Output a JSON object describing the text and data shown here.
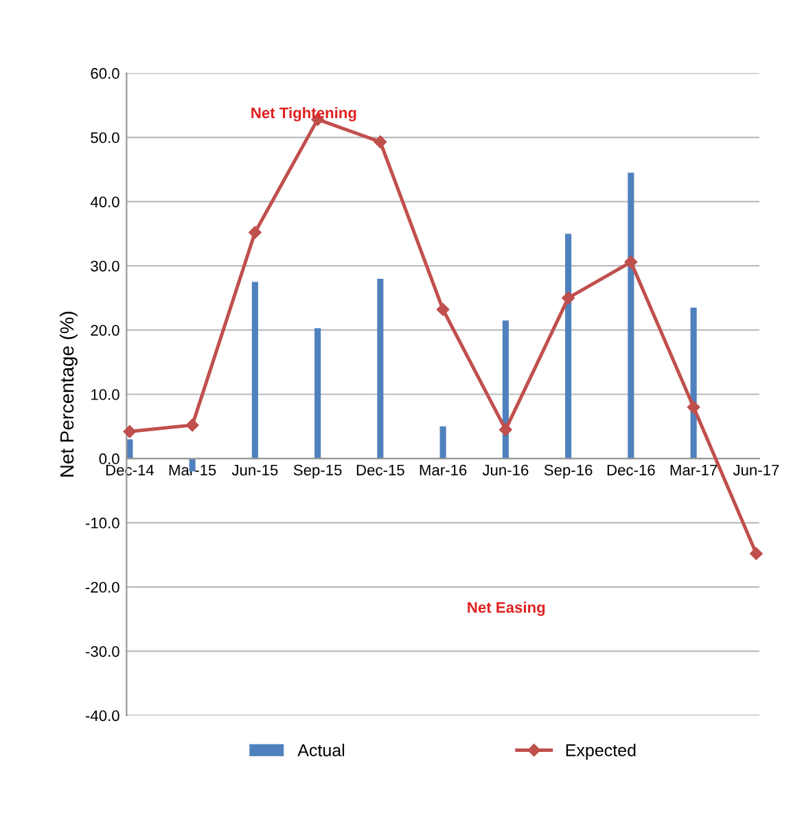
{
  "chart_data": {
    "type": "bar",
    "ylabel": "Net Percentage (%)",
    "categories": [
      "Dec-14",
      "Mar-15",
      "Jun-15",
      "Sep-15",
      "Dec-15",
      "Mar-16",
      "Jun-16",
      "Sep-16",
      "Dec-16",
      "Mar-17",
      "Jun-17"
    ],
    "series": [
      {
        "name": "Actual",
        "color": "#4f81bd",
        "values": [
          3,
          -2,
          27.5,
          20.3,
          28,
          5,
          21.5,
          35,
          44.5,
          23.5,
          null
        ]
      },
      {
        "name": "Expected",
        "type": "line",
        "color": "#c0504d",
        "marker": "diamond",
        "values": [
          4.2,
          5.2,
          35.2,
          52.8,
          49.3,
          23.2,
          4.5,
          25,
          30.6,
          8,
          -14.8
        ]
      }
    ],
    "ylim": [
      -40,
      60
    ],
    "yticks": [
      {
        "value": -40,
        "label": "-40.0"
      },
      {
        "value": -30,
        "label": "-30.0"
      },
      {
        "value": -20,
        "label": "-20.0"
      },
      {
        "value": -10,
        "label": "-10.0"
      },
      {
        "value": 0,
        "label": "0.0"
      },
      {
        "value": 10,
        "label": "10.0"
      },
      {
        "value": 20,
        "label": "20.0"
      },
      {
        "value": 30,
        "label": "30.0"
      },
      {
        "value": 40,
        "label": "40.0"
      },
      {
        "value": 50,
        "label": "50.0"
      },
      {
        "value": 60,
        "label": "60.0"
      }
    ],
    "grid": "y",
    "legend": "bottom",
    "annotations": [
      "Net Tightening",
      "Net Easing"
    ]
  }
}
